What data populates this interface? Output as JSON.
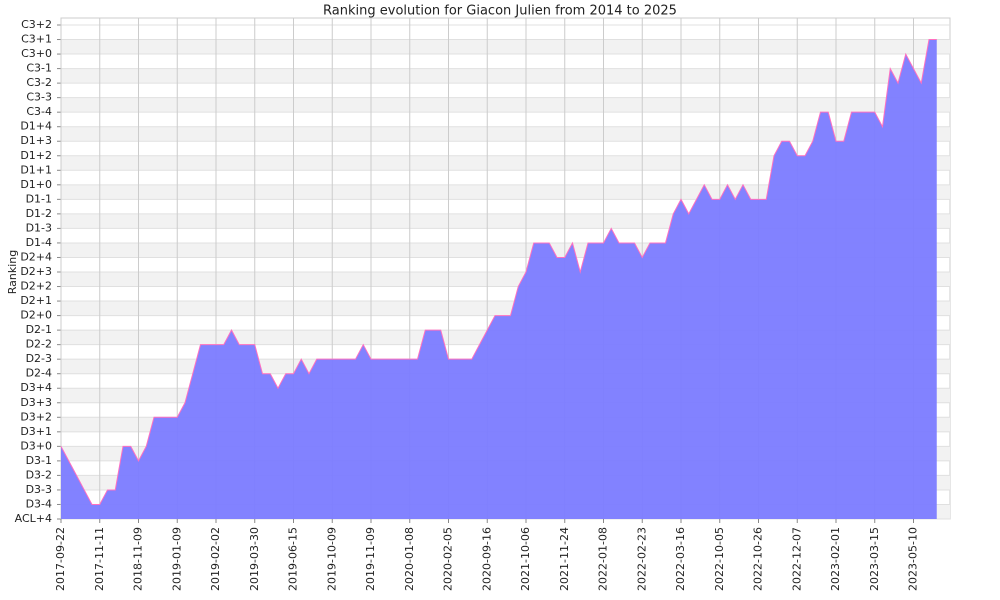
{
  "chart_data": {
    "type": "area",
    "title": "Ranking evolution for Giacon Julien from 2014 to 2025",
    "y_label": "Ranking",
    "categories": [
      "2017-09-22",
      null,
      null,
      null,
      null,
      "2017-11-11",
      null,
      null,
      null,
      null,
      "2018-11-09",
      null,
      null,
      null,
      null,
      "2019-01-09",
      null,
      null,
      null,
      null,
      "2019-02-02",
      null,
      null,
      null,
      null,
      "2019-03-30",
      null,
      null,
      null,
      null,
      "2019-06-15",
      null,
      null,
      null,
      null,
      "2019-10-09",
      null,
      null,
      null,
      null,
      "2019-11-09",
      null,
      null,
      null,
      null,
      "2020-01-08",
      null,
      null,
      null,
      null,
      "2020-02-05",
      null,
      null,
      null,
      null,
      "2020-09-16",
      null,
      null,
      null,
      null,
      "2021-10-06",
      null,
      null,
      null,
      null,
      "2021-11-24",
      null,
      null,
      null,
      null,
      "2022-01-08",
      null,
      null,
      null,
      null,
      "2022-02-23",
      null,
      null,
      null,
      null,
      "2022-03-16",
      null,
      null,
      null,
      null,
      "2022-10-05",
      null,
      null,
      null,
      null,
      "2022-10-26",
      null,
      null,
      null,
      null,
      "2022-12-07",
      null,
      null,
      null,
      null,
      "2023-02-01",
      null,
      null,
      null,
      null,
      "2023-03-15",
      null,
      null,
      null,
      null,
      "2023-05-10",
      null,
      null,
      null
    ],
    "values": [
      5,
      4,
      3,
      2,
      1,
      1,
      2,
      2,
      5,
      5,
      4,
      5,
      7,
      7,
      7,
      7,
      8,
      10,
      12,
      12,
      12,
      12,
      13,
      12,
      12,
      12,
      10,
      10,
      9,
      10,
      10,
      11,
      10,
      11,
      11,
      11,
      11,
      11,
      11,
      12,
      11,
      11,
      11,
      11,
      11,
      11,
      11,
      13,
      13,
      13,
      11,
      11,
      11,
      11,
      12,
      13,
      14,
      14,
      14,
      16,
      17,
      19,
      19,
      19,
      18,
      18,
      19,
      17,
      19,
      19,
      19,
      20,
      19,
      19,
      19,
      18,
      19,
      19,
      19,
      21,
      22,
      21,
      22,
      23,
      22,
      22,
      23,
      22,
      23,
      22,
      22,
      22,
      25,
      26,
      26,
      25,
      25,
      26,
      28,
      28,
      26,
      26,
      28,
      28,
      28,
      28,
      27,
      31,
      30,
      32,
      31,
      30,
      33,
      33
    ],
    "color": "#7b7bff",
    "line_color": "#ff70c0",
    "ylim": [
      0,
      34
    ],
    "yticks": [
      {
        "value": 0,
        "label": "ACL+4"
      },
      {
        "value": 1,
        "label": "D3-4"
      },
      {
        "value": 2,
        "label": "D3-3"
      },
      {
        "value": 3,
        "label": "D3-2"
      },
      {
        "value": 4,
        "label": "D3-1"
      },
      {
        "value": 5,
        "label": "D3+0"
      },
      {
        "value": 6,
        "label": "D3+1"
      },
      {
        "value": 7,
        "label": "D3+2"
      },
      {
        "value": 8,
        "label": "D3+3"
      },
      {
        "value": 9,
        "label": "D3+4"
      },
      {
        "value": 10,
        "label": "D2-4"
      },
      {
        "value": 11,
        "label": "D2-3"
      },
      {
        "value": 12,
        "label": "D2-2"
      },
      {
        "value": 13,
        "label": "D2-1"
      },
      {
        "value": 14,
        "label": "D2+0"
      },
      {
        "value": 15,
        "label": "D2+1"
      },
      {
        "value": 16,
        "label": "D2+2"
      },
      {
        "value": 17,
        "label": "D2+3"
      },
      {
        "value": 18,
        "label": "D2+4"
      },
      {
        "value": 19,
        "label": "D1-4"
      },
      {
        "value": 20,
        "label": "D1-3"
      },
      {
        "value": 21,
        "label": "D1-2"
      },
      {
        "value": 22,
        "label": "D1-1"
      },
      {
        "value": 23,
        "label": "D1+0"
      },
      {
        "value": 24,
        "label": "D1+1"
      },
      {
        "value": 25,
        "label": "D1+2"
      },
      {
        "value": 26,
        "label": "D1+3"
      },
      {
        "value": 27,
        "label": "D1+4"
      },
      {
        "value": 28,
        "label": "C3-4"
      },
      {
        "value": 29,
        "label": "C3-3"
      },
      {
        "value": 30,
        "label": "C3-2"
      },
      {
        "value": 31,
        "label": "C3-1"
      },
      {
        "value": 32,
        "label": "C3+0"
      },
      {
        "value": 33,
        "label": "C3+1"
      },
      {
        "value": 34,
        "label": "C3+2"
      }
    ],
    "grid": true
  }
}
